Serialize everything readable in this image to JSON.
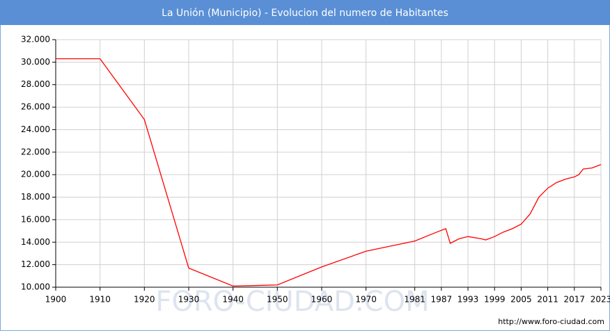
{
  "chart_data": {
    "type": "line",
    "title": "La Unión (Municipio) - Evolucion del numero de Habitantes",
    "watermark": "FORO-CIUDAD.COM",
    "footer": "http://www.foro-ciudad.com",
    "x": [
      1900,
      1910,
      1920,
      1930,
      1940,
      1950,
      1960,
      1970,
      1981,
      1986,
      1988,
      1989,
      1991,
      1993,
      1996,
      1997,
      1999,
      2001,
      2003,
      2005,
      2007,
      2009,
      2011,
      2013,
      2015,
      2017,
      2018,
      2019,
      2021,
      2023
    ],
    "series": [
      {
        "name": "Habitantes",
        "color": "#ff0000",
        "values": [
          30300,
          30300,
          24900,
          11700,
          10100,
          10200,
          11800,
          13200,
          14100,
          14900,
          15200,
          13900,
          14300,
          14500,
          14300,
          14200,
          14500,
          14900,
          15200,
          15600,
          16500,
          18000,
          18800,
          19300,
          19600,
          19800,
          20000,
          20500,
          20600,
          20900
        ]
      }
    ],
    "xlim": [
      1900,
      2023
    ],
    "xticks": [
      1900,
      1910,
      1920,
      1930,
      1940,
      1950,
      1960,
      1970,
      1981,
      1987,
      1993,
      1999,
      2005,
      2011,
      2017,
      2023
    ],
    "ylim": [
      10000,
      32000
    ],
    "yticks": [
      {
        "value": 10000,
        "label": "10.000"
      },
      {
        "value": 12000,
        "label": "12.000"
      },
      {
        "value": 14000,
        "label": "14.000"
      },
      {
        "value": 16000,
        "label": "16.000"
      },
      {
        "value": 18000,
        "label": "18.000"
      },
      {
        "value": 20000,
        "label": "20.000"
      },
      {
        "value": 22000,
        "label": "22.000"
      },
      {
        "value": 24000,
        "label": "24.000"
      },
      {
        "value": 26000,
        "label": "26.000"
      },
      {
        "value": 28000,
        "label": "28.000"
      },
      {
        "value": 30000,
        "label": "30.000"
      },
      {
        "value": 32000,
        "label": "32.000"
      }
    ],
    "grid": true
  }
}
